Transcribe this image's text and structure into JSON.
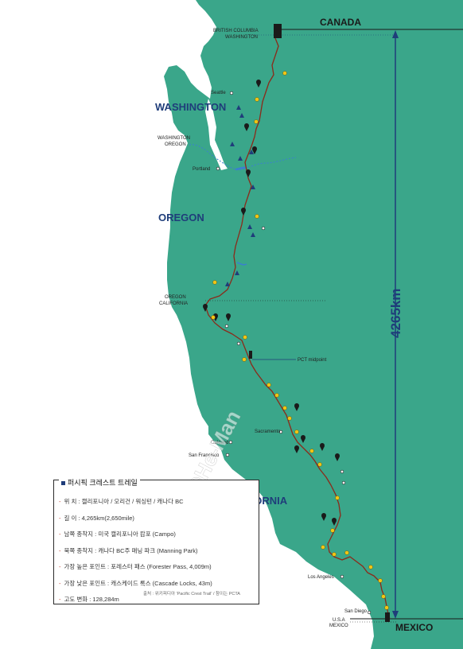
{
  "countries": {
    "north": "CANADA",
    "south": "MEXICO"
  },
  "states": [
    "WASHINGTON",
    "OREGON",
    "CALIFORNIA"
  ],
  "borders": {
    "canada_usa": "BRITISH COLUMBIA\nWASHINGTON",
    "wa_or": "WASHINGTON\nOREGON",
    "or_ca": "OREGON\nCALIFORNIA",
    "usa_mexico": "U.S.A\nMEXICO"
  },
  "cities": [
    "Seattle",
    "Portland",
    "Sacramento",
    "Oakland",
    "San Francisco",
    "Los Angeles",
    "San Diego"
  ],
  "midpoint_label": "PCT midpoint",
  "distance_label": "4265km",
  "watermark": "©He-Man",
  "info": {
    "title": "퍼시픽 크레스트 트레일",
    "items": [
      "위 치 : 캘리포니아 / 오리건 / 워싱턴 / 캐나다 BC",
      "길 이 : 4,265km(2,650mile)",
      "남쪽 종착지 : 미국 캘리포니아 캄포 (Campo)",
      "북쪽 종착지 : 캐나다 BC주 매닝 파크 (Manning Park)",
      "가장 높은 포인트 : 포레스터 패스 (Forester Pass, 4,009m)",
      "가장 낮은 포인트 : 캐스케이드 록스 (Cascade Locks, 43m)",
      "고도 변화 : 128,284m"
    ],
    "source": "출처 : 위키피디아 'Pacific Crest Trail' / 참이는 PCTA"
  },
  "colors": {
    "land": "#3aa68a",
    "sea": "#ffffff",
    "trail": "#8b2a1a",
    "border_line": "#1f3d7a",
    "state_text": "#1f3d7a"
  }
}
